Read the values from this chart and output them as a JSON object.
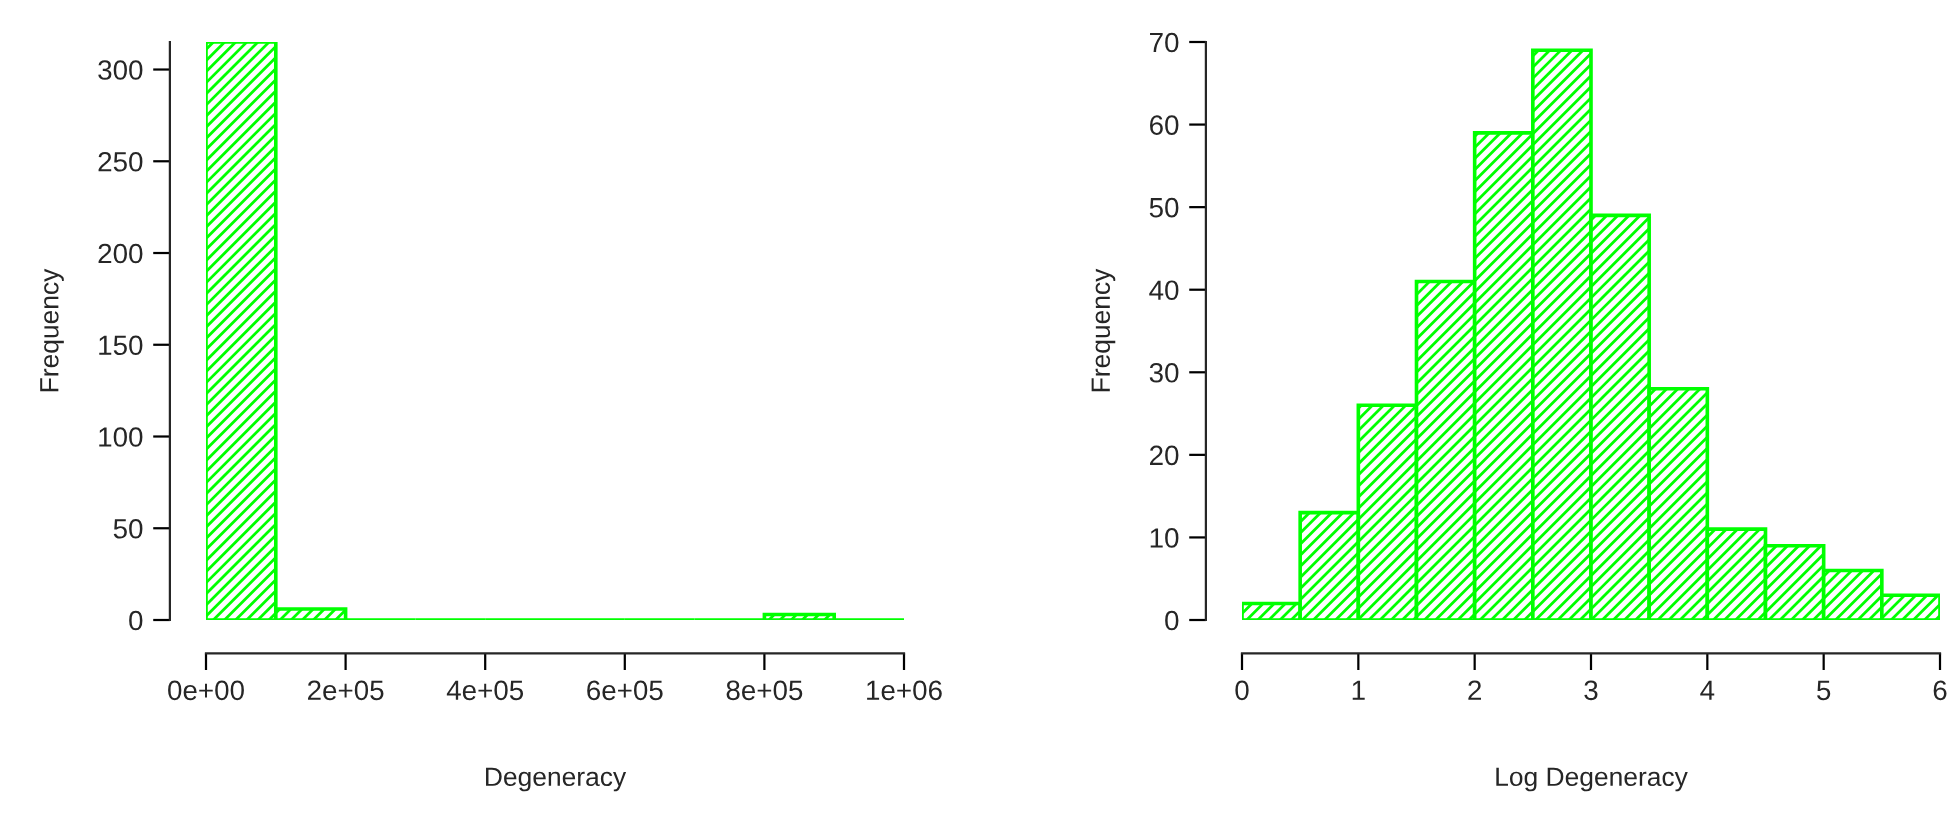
{
  "chart_data": [
    {
      "type": "histogram",
      "xlabel": "Degeneracy",
      "ylabel": "Frequency",
      "color": "#00ff00",
      "bins": [
        0,
        100000,
        200000,
        300000,
        400000,
        500000,
        600000,
        700000,
        800000,
        900000,
        1000000
      ],
      "values": [
        315,
        6,
        0,
        0,
        0,
        0,
        0,
        0,
        3,
        0
      ],
      "xlim": [
        0,
        1000000
      ],
      "xticks": [
        {
          "value": 0,
          "label": "0e+00"
        },
        {
          "value": 200000,
          "label": "2e+05"
        },
        {
          "value": 400000,
          "label": "4e+05"
        },
        {
          "value": 600000,
          "label": "6e+05"
        },
        {
          "value": 800000,
          "label": "8e+05"
        },
        {
          "value": 1000000,
          "label": "1e+06"
        }
      ],
      "ylim": [
        0,
        315
      ],
      "yticks": [
        0,
        50,
        100,
        150,
        200,
        250,
        300
      ],
      "grid": false
    },
    {
      "type": "histogram",
      "xlabel": "Log Degeneracy",
      "ylabel": "Frequency",
      "color": "#00ff00",
      "bins": [
        0,
        0.5,
        1,
        1.5,
        2,
        2.5,
        3,
        3.5,
        4,
        4.5,
        5,
        5.5,
        6
      ],
      "values": [
        2,
        13,
        26,
        41,
        59,
        69,
        49,
        28,
        11,
        9,
        6,
        3
      ],
      "xlim": [
        0,
        6
      ],
      "xticks": [
        0,
        1,
        2,
        3,
        4,
        5,
        6
      ],
      "ylim": [
        0,
        70
      ],
      "yticks": [
        0,
        10,
        20,
        30,
        40,
        50,
        60,
        70
      ],
      "grid": false
    }
  ]
}
